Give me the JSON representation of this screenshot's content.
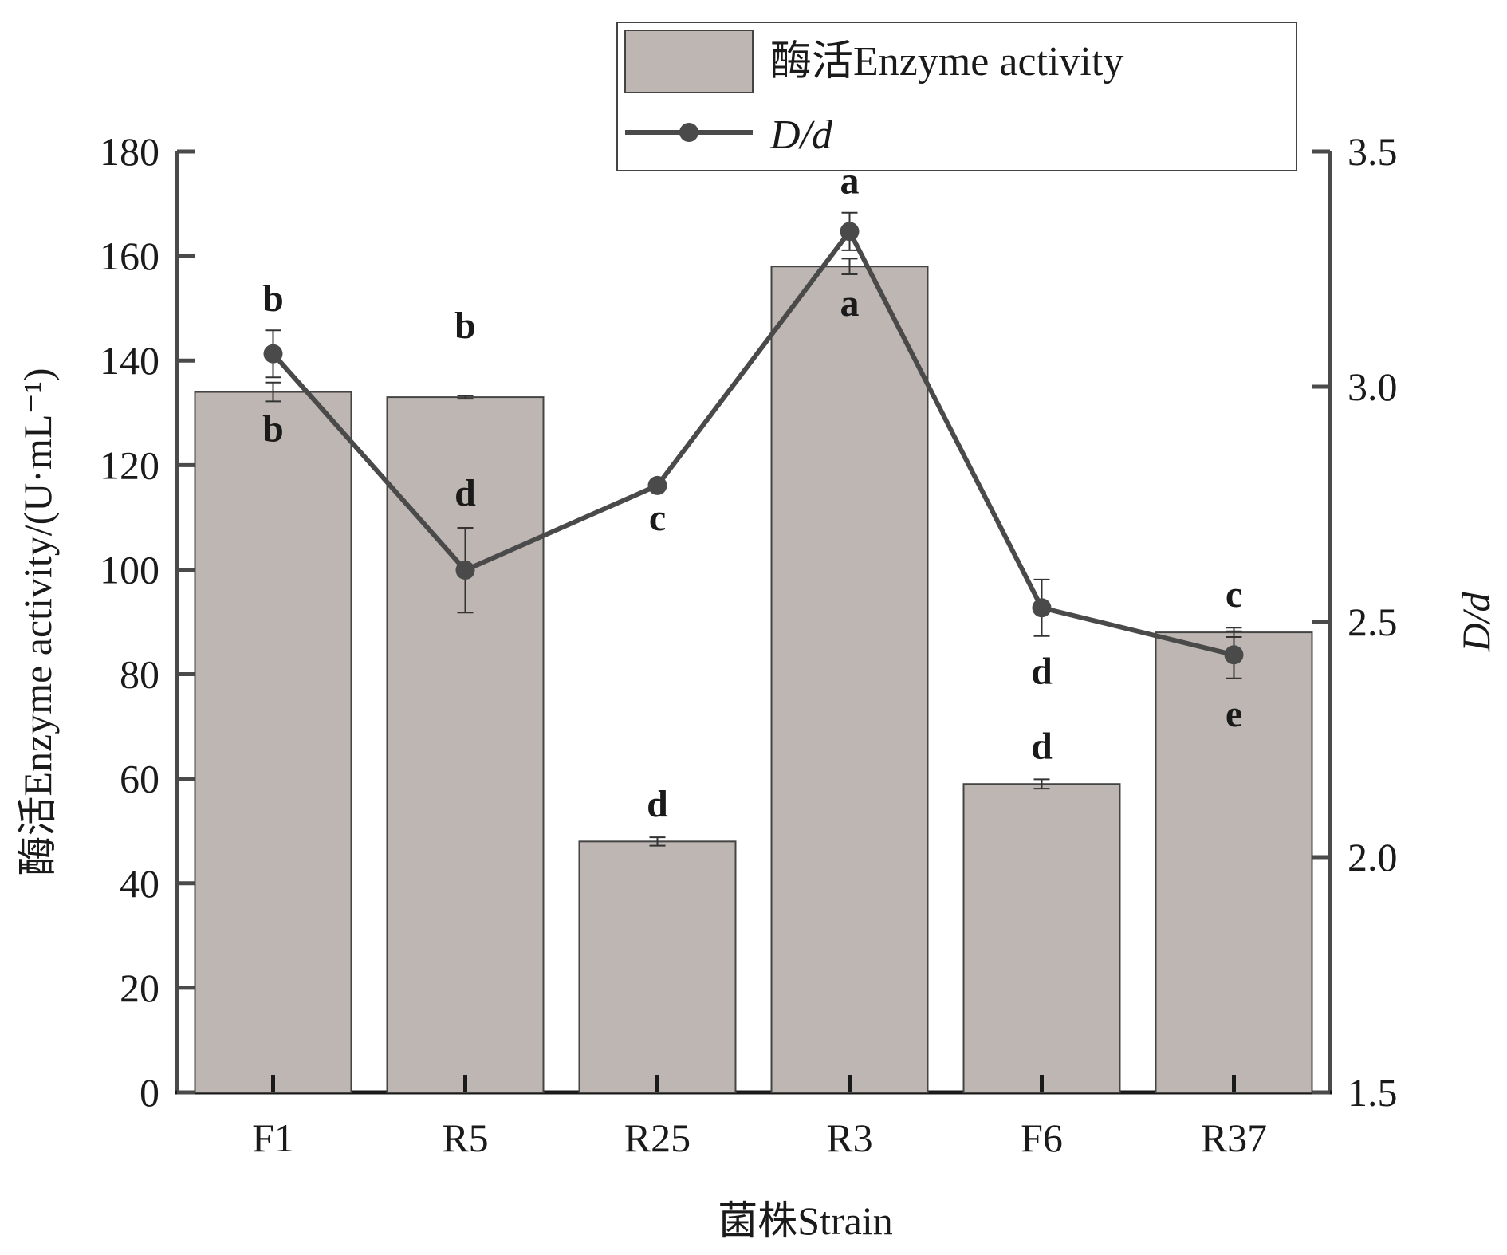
{
  "chart_data": {
    "type": "bar+line",
    "categories": [
      "F1",
      "R5",
      "R25",
      "R3",
      "F6",
      "R37"
    ],
    "xlabel": "菌株Strain",
    "ylabel_left": "酶活Enzyme activity/(U·mL⁻¹)",
    "ylabel_right": "D/d",
    "ylim_left": [
      0,
      180
    ],
    "ylim_right": [
      1.5,
      3.5
    ],
    "yticks_left": [
      "0",
      "20",
      "40",
      "60",
      "80",
      "100",
      "120",
      "140",
      "160",
      "180"
    ],
    "yticks_right": [
      "1.5",
      "2.0",
      "2.5",
      "3.0",
      "3.5"
    ],
    "grid": false,
    "legend_position": "top-right",
    "colors": {
      "bar_fill": "#beb6b2",
      "bar_stroke": "#444444",
      "line": "#4a4a4a",
      "axis": "#4a4a4a"
    },
    "series": [
      {
        "name": "酶活Enzyme activity",
        "kind": "bar",
        "axis": "left",
        "values": [
          134,
          133,
          48,
          158,
          59,
          88
        ],
        "errors": [
          1.8,
          0.3,
          0.8,
          1.5,
          0.9,
          0.9
        ],
        "letters": [
          "b",
          "b",
          "d",
          "a",
          "d",
          "c"
        ]
      },
      {
        "name": "D/d",
        "kind": "line",
        "axis": "right",
        "values": [
          3.07,
          2.61,
          2.79,
          3.33,
          2.53,
          2.43
        ],
        "errors": [
          0.05,
          0.09,
          0,
          0.04,
          0.06,
          0.05
        ],
        "letters": [
          "b",
          "d",
          "c",
          "a",
          "d",
          "e"
        ]
      }
    ]
  }
}
